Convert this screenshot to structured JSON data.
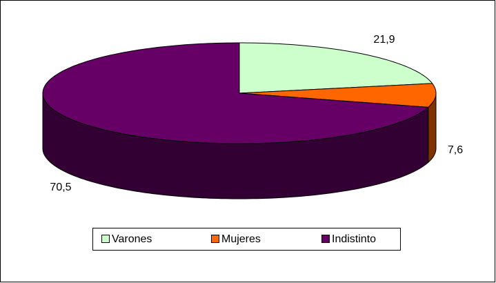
{
  "chart_data": {
    "type": "pie3d",
    "categories": [
      "Varones",
      "Mujeres",
      "Indistinto"
    ],
    "values": [
      21.9,
      7.6,
      70.5
    ],
    "value_labels": [
      "21,9",
      "7,6",
      "70,5"
    ],
    "colors": [
      "#ccffcc",
      "#ff6600",
      "#660066"
    ],
    "legend": "bottom"
  }
}
